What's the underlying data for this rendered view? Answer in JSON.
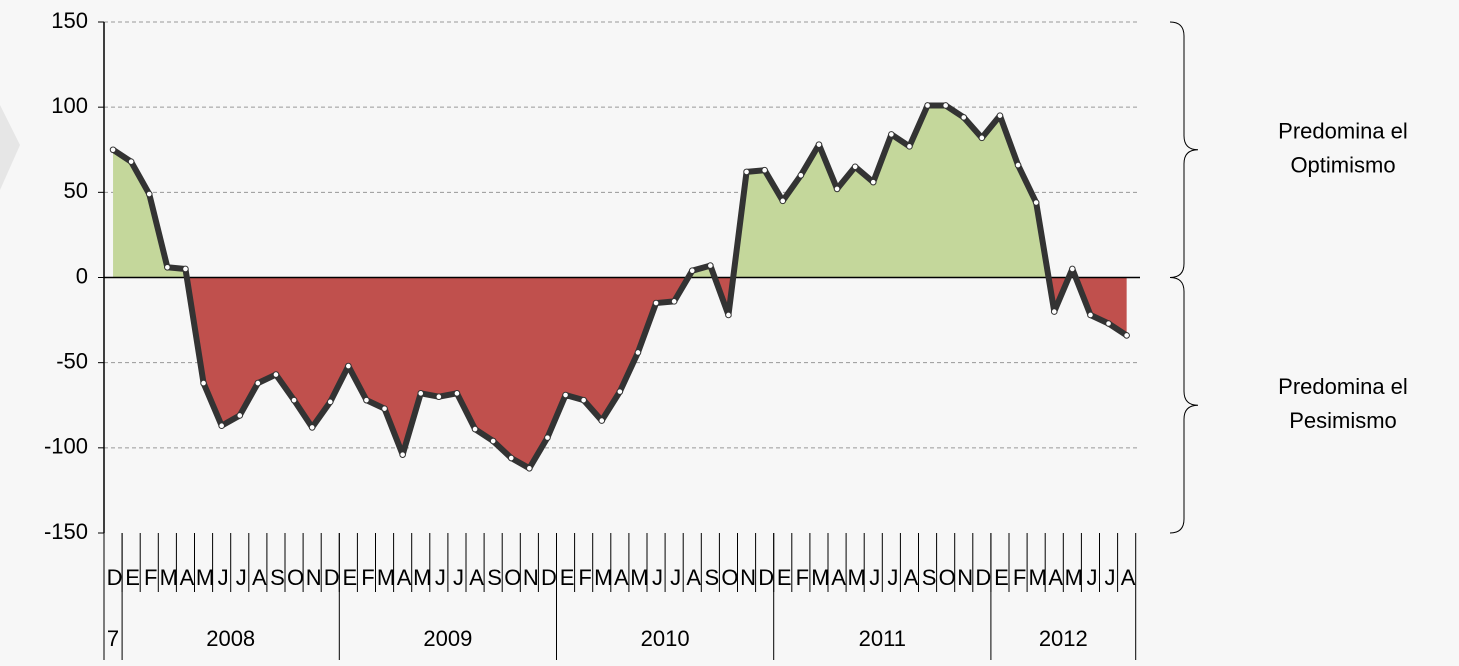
{
  "chart_data": {
    "type": "area-line",
    "categories": [
      "D",
      "E",
      "F",
      "M",
      "A",
      "M",
      "J",
      "J",
      "A",
      "S",
      "O",
      "N",
      "D",
      "E",
      "F",
      "M",
      "A",
      "M",
      "J",
      "J",
      "A",
      "S",
      "O",
      "N",
      "D",
      "E",
      "F",
      "M",
      "A",
      "M",
      "J",
      "J",
      "A",
      "S",
      "O",
      "N",
      "D",
      "E",
      "F",
      "M",
      "A",
      "M",
      "J",
      "J",
      "A",
      "S",
      "O",
      "N",
      "D",
      "E",
      "F",
      "M",
      "A",
      "M",
      "J",
      "J",
      "A"
    ],
    "years": [
      "7",
      "2008",
      "2009",
      "2010",
      "2011",
      "2012"
    ],
    "values": [
      75,
      68,
      49,
      6,
      5,
      -62,
      -87,
      -81,
      -62,
      -57,
      -72,
      -88,
      -73,
      -52,
      -72,
      -77,
      -104,
      -68,
      -70,
      -68,
      -89,
      -96,
      -106,
      -112,
      -94,
      -69,
      -72,
      -84,
      -67,
      -44,
      -15,
      -14,
      4,
      7,
      -22,
      62,
      63,
      45,
      60,
      78,
      52,
      65,
      56,
      84,
      77,
      101,
      101,
      94,
      82,
      95,
      66,
      44,
      -20,
      5,
      -22,
      -27,
      -34
    ],
    "colors": {
      "positive": "#c4d79b",
      "negative": "#c0504d",
      "line": "#333333"
    },
    "ylim": [
      -150,
      150
    ],
    "yticks": [
      -150,
      -100,
      -50,
      0,
      50,
      100,
      150
    ],
    "grid": true,
    "annotations": [
      {
        "lines": [
          "Predomina el",
          "Optimismo"
        ],
        "range": [
          0,
          150
        ]
      },
      {
        "lines": [
          "Predomina el",
          "Pesimismo"
        ],
        "range": [
          -150,
          0
        ]
      }
    ]
  }
}
